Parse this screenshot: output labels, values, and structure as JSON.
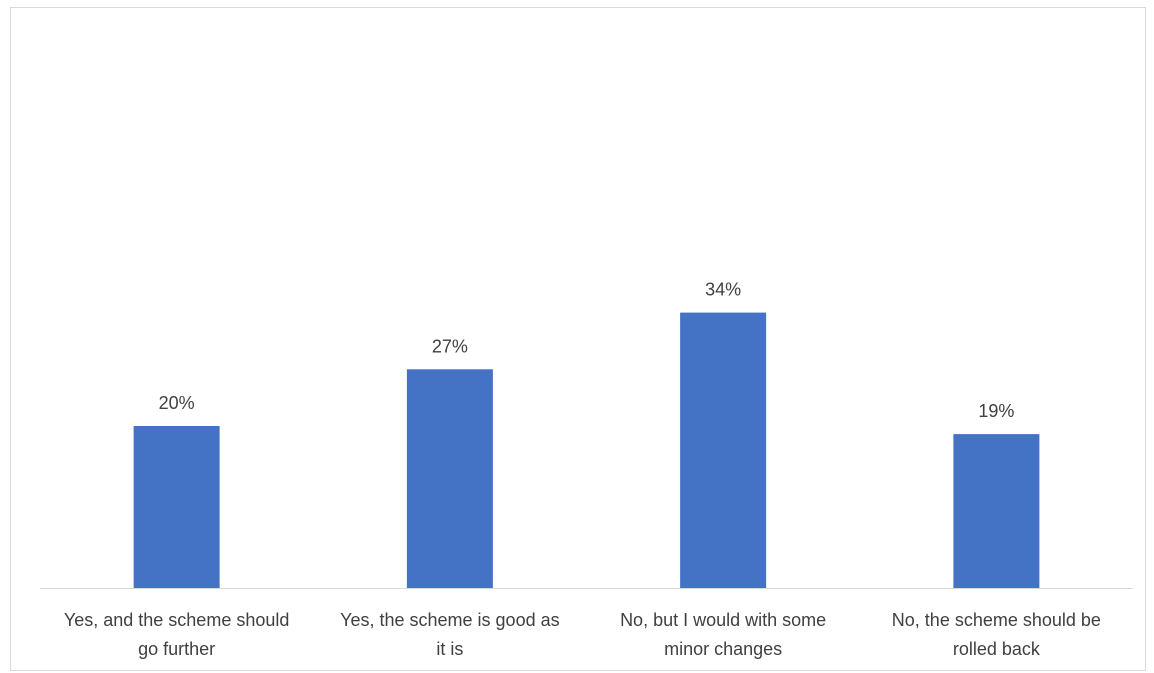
{
  "chart_data": {
    "type": "bar",
    "categories": [
      [
        "Yes, and the scheme should",
        "go further"
      ],
      [
        "Yes, the scheme is good as",
        "it is"
      ],
      [
        "No, but I would with some",
        "minor changes"
      ],
      [
        "No, the scheme should be",
        "rolled back"
      ]
    ],
    "values": [
      20,
      27,
      34,
      19
    ],
    "data_labels": [
      "20%",
      "27%",
      "34%",
      "19%"
    ],
    "value_unit": "%",
    "title": "",
    "xlabel": "",
    "ylabel": "",
    "ylim": [
      0,
      40
    ],
    "grid": false,
    "legend": "none",
    "bar_color": "#4472C4",
    "axis_color": "#d9d9d9",
    "text_color": "#404040"
  }
}
